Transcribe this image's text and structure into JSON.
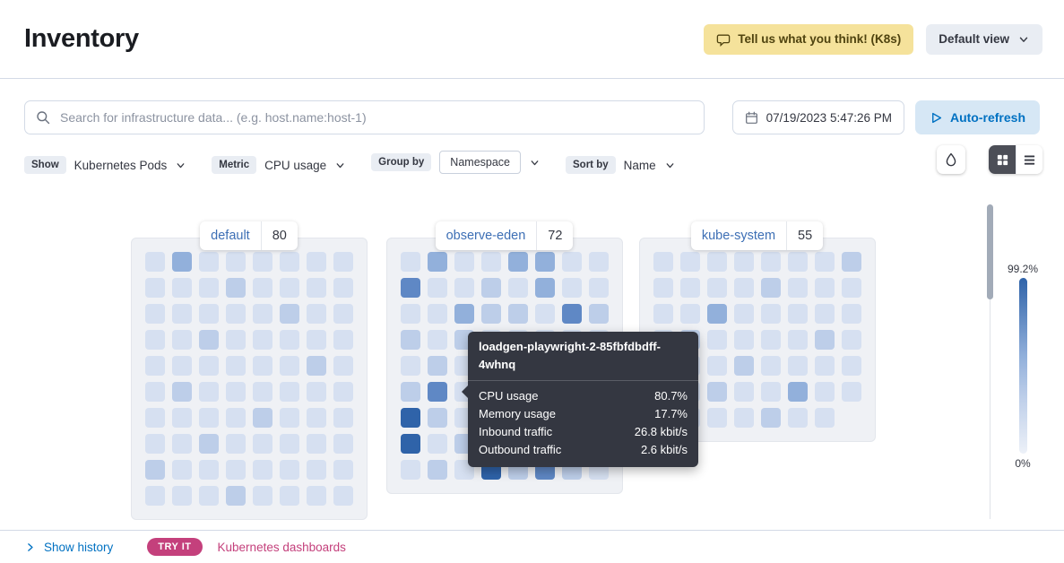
{
  "header": {
    "title": "Inventory",
    "feedback_button": "Tell us what you think! (K8s)",
    "view_selector": "Default view"
  },
  "toolbar": {
    "search_placeholder": "Search for infrastructure data... (e.g. host.name:host-1)",
    "datetime": "07/19/2023 5:47:26 PM",
    "auto_refresh": "Auto-refresh"
  },
  "filters": {
    "show_label": "Show",
    "show_value": "Kubernetes Pods",
    "metric_label": "Metric",
    "metric_value": "CPU usage",
    "group_by_label": "Group by",
    "group_by_value": "Namespace",
    "sort_by_label": "Sort by",
    "sort_by_value": "Name"
  },
  "groups": [
    {
      "name": "default",
      "count": "80",
      "rows": [
        "02000000",
        "00010000",
        "00000100",
        "00100000",
        "00000010",
        "01000000",
        "00001000",
        "00100000",
        "10000000",
        "00010000"
      ]
    },
    {
      "name": "observe-eden",
      "count": "72",
      "rows": [
        "02002200",
        "30010200",
        "00211031",
        "10100000",
        "01000020",
        "13000000",
        "41000000",
        "40100000",
        "01041310"
      ]
    },
    {
      "name": "kube-system",
      "count": "55",
      "rows": [
        "00000001",
        "00001000",
        "00200000",
        "01000010",
        "20010000",
        "00100200",
        "0000100"
      ]
    }
  ],
  "tooltip": {
    "title": "loadgen-playwright-2-85fbfdbdff-4whnq",
    "metrics": [
      {
        "label": "CPU usage",
        "value": "80.7%"
      },
      {
        "label": "Memory usage",
        "value": "17.7%"
      },
      {
        "label": "Inbound traffic",
        "value": "26.8 kbit/s"
      },
      {
        "label": "Outbound traffic",
        "value": "2.6 kbit/s"
      }
    ]
  },
  "legend": {
    "max_label": "99.2%",
    "min_label": "0%"
  },
  "footer": {
    "show_history": "Show history",
    "try_it_badge": "TRY IT",
    "dashboards_link": "Kubernetes dashboards"
  },
  "icons": {
    "feedback": "speech-bubble",
    "search": "magnifier",
    "date": "calendar",
    "auto_refresh": "play",
    "legend_options": "ink-droplet",
    "view_map": "grid",
    "view_table": "table-rows",
    "history": "chevron-right",
    "dropdown": "chevron-down"
  },
  "colors": {
    "primary_blue": "#0071C2",
    "accent_pink": "#C4407C",
    "warning_bg": "#F5E29B",
    "namespace_link": "#3D6FB5",
    "legend_low": "#EDF1F8",
    "cell_scale": [
      "#D6E0F1",
      "#BDCEE9",
      "#92B0DB",
      "#5F88C5",
      "#2F63A9"
    ]
  }
}
